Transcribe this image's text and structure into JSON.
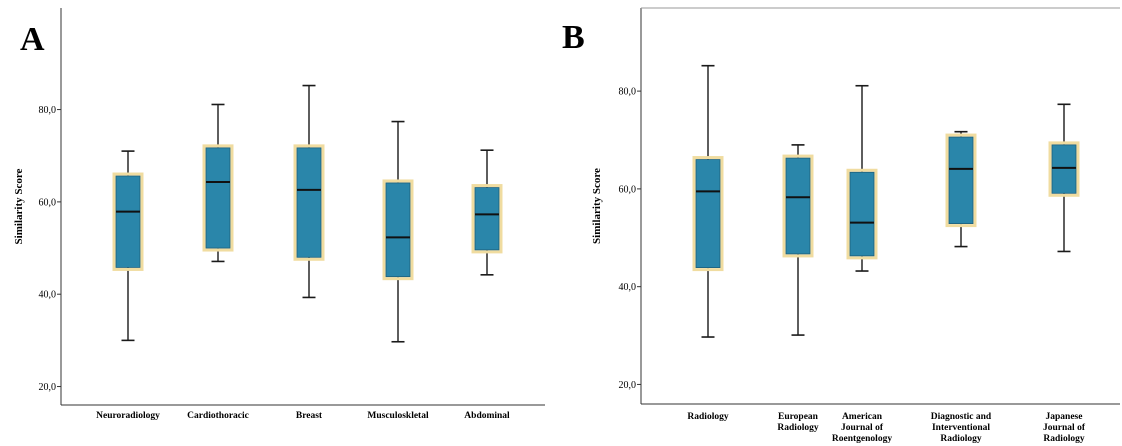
{
  "colors": {
    "box_fill": "#2a86aa",
    "box_outline": "#f0dca0",
    "line": "#1a1a1a",
    "axis": "#333333"
  },
  "chart_data": [
    {
      "type": "boxplot",
      "panel_label": "A",
      "ylabel": "Similarity Score",
      "ylim": [
        16,
        102
      ],
      "yticks": [
        20,
        40,
        60,
        80
      ],
      "ytick_labels": [
        "20,0",
        "40,0",
        "60,0",
        "80,0"
      ],
      "categories": [
        "Neuroradiology",
        "Cardiothoracic",
        "Breast",
        "Musculoskletal",
        "Abdominal"
      ],
      "boxes": [
        {
          "category": "Neuroradiology",
          "min": 30.0,
          "q1": 45.8,
          "median": 57.9,
          "q3": 65.6,
          "max": 71.0
        },
        {
          "category": "Cardiothoracic",
          "min": 47.1,
          "q1": 50.0,
          "median": 64.3,
          "q3": 71.7,
          "max": 81.1
        },
        {
          "category": "Breast",
          "min": 39.3,
          "q1": 48.0,
          "median": 62.6,
          "q3": 71.7,
          "max": 85.2
        },
        {
          "category": "Musculoskletal",
          "min": 29.7,
          "q1": 43.8,
          "median": 52.3,
          "q3": 64.1,
          "max": 77.4
        },
        {
          "category": "Abdominal",
          "min": 44.2,
          "q1": 49.6,
          "median": 57.3,
          "q3": 63.1,
          "max": 71.2
        }
      ],
      "grid": false
    },
    {
      "type": "boxplot",
      "panel_label": "B",
      "ylabel": "Similarity Score",
      "ylim": [
        16,
        97
      ],
      "yticks": [
        20,
        40,
        60,
        80
      ],
      "ytick_labels": [
        "20,0",
        "40,0",
        "60,0",
        "80,0"
      ],
      "categories": [
        [
          "Radiology"
        ],
        [
          "European",
          "Radiology"
        ],
        [
          "American",
          "Journal of",
          "Roentgenology"
        ],
        [
          "Diagnostic and",
          "Interventional",
          "Radiology"
        ],
        [
          "Japanese",
          "Journal of",
          "Radiology"
        ]
      ],
      "boxes": [
        {
          "category": "Radiology",
          "min": 29.7,
          "q1": 43.9,
          "median": 59.5,
          "q3": 66.0,
          "max": 85.2
        },
        {
          "category": "European Radiology",
          "min": 30.1,
          "q1": 46.7,
          "median": 58.3,
          "q3": 66.3,
          "max": 69.0
        },
        {
          "category": "American Journal of Roentgenology",
          "min": 43.2,
          "q1": 46.3,
          "median": 53.1,
          "q3": 63.4,
          "max": 81.1
        },
        {
          "category": "Diagnostic and Interventional Radiology",
          "min": 48.2,
          "q1": 52.9,
          "median": 64.1,
          "q3": 70.6,
          "max": 71.7
        },
        {
          "category": "Japanese Journal of Radiology",
          "min": 47.2,
          "q1": 59.1,
          "median": 64.3,
          "q3": 69.0,
          "max": 77.3
        }
      ],
      "grid": false
    }
  ]
}
